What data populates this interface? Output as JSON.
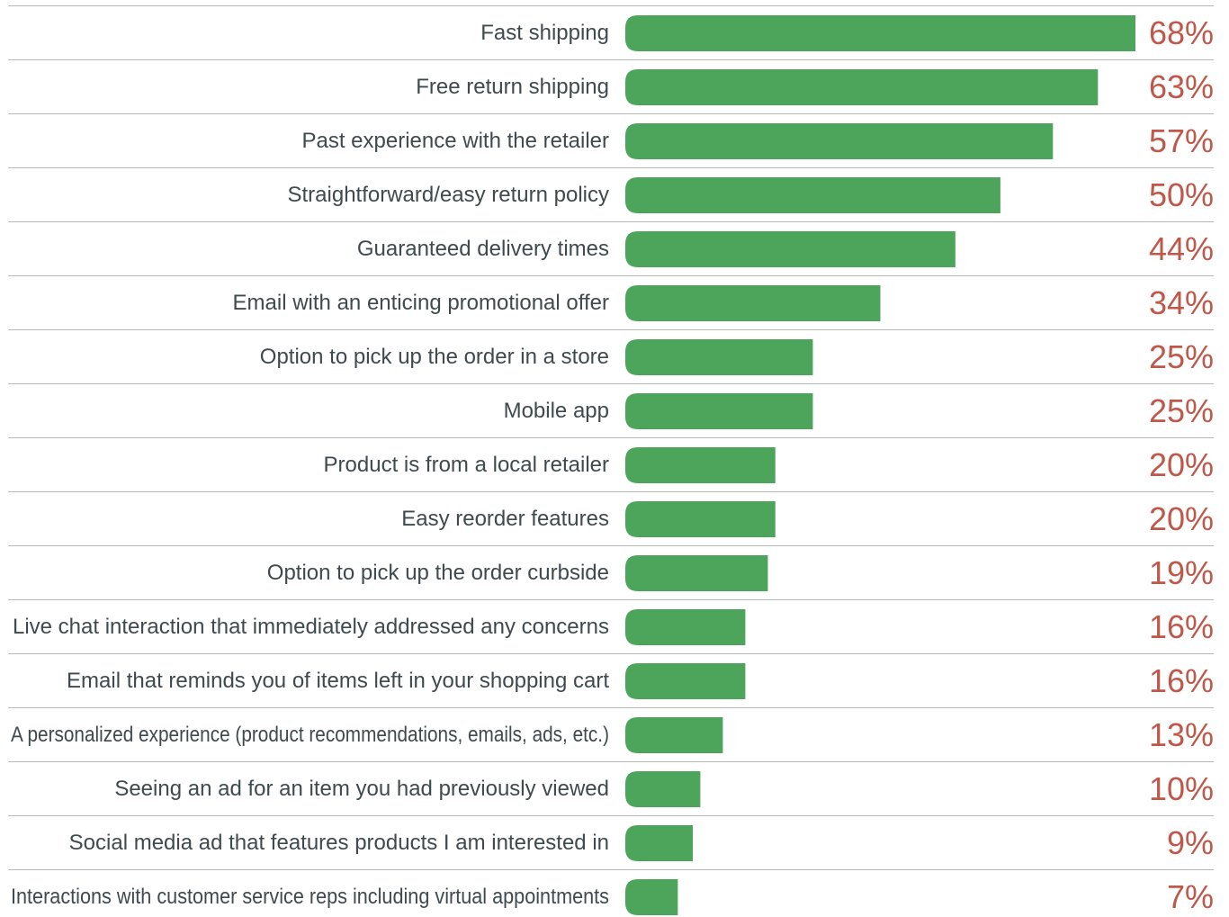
{
  "chart_data": {
    "type": "bar",
    "orientation": "horizontal",
    "title": "",
    "xlabel": "",
    "ylabel": "",
    "xlim": [
      0,
      68
    ],
    "grid": false,
    "legend": "none",
    "colors": {
      "bar": "#4ca55b",
      "value_label": "#c0584a",
      "category_label": "#3f4a4f",
      "separator": "#b9b9b9"
    },
    "categories": [
      "Fast shipping",
      "Free return shipping",
      "Past experience with the retailer",
      "Straightforward/easy return policy",
      "Guaranteed delivery times",
      "Email with an enticing promotional offer",
      "Option to pick up the order in a store",
      "Mobile app",
      "Product is from a local retailer",
      "Easy reorder features",
      "Option to pick up the order curbside",
      "Live chat interaction that immediately addressed any concerns",
      "Email that reminds you of items left in your shopping cart",
      "A personalized experience (product recommendations, emails, ads, etc.)",
      "Seeing an ad for an item you had previously viewed",
      "Social media ad that features products I am interested in",
      "Interactions with customer service reps including virtual appointments"
    ],
    "values": [
      68,
      63,
      57,
      50,
      44,
      34,
      25,
      25,
      20,
      20,
      19,
      16,
      16,
      13,
      10,
      9,
      7
    ],
    "value_labels": [
      "68%",
      "63%",
      "57%",
      "50%",
      "44%",
      "34%",
      "25%",
      "25%",
      "20%",
      "20%",
      "19%",
      "16%",
      "16%",
      "13%",
      "10%",
      "9%",
      "7%"
    ]
  }
}
